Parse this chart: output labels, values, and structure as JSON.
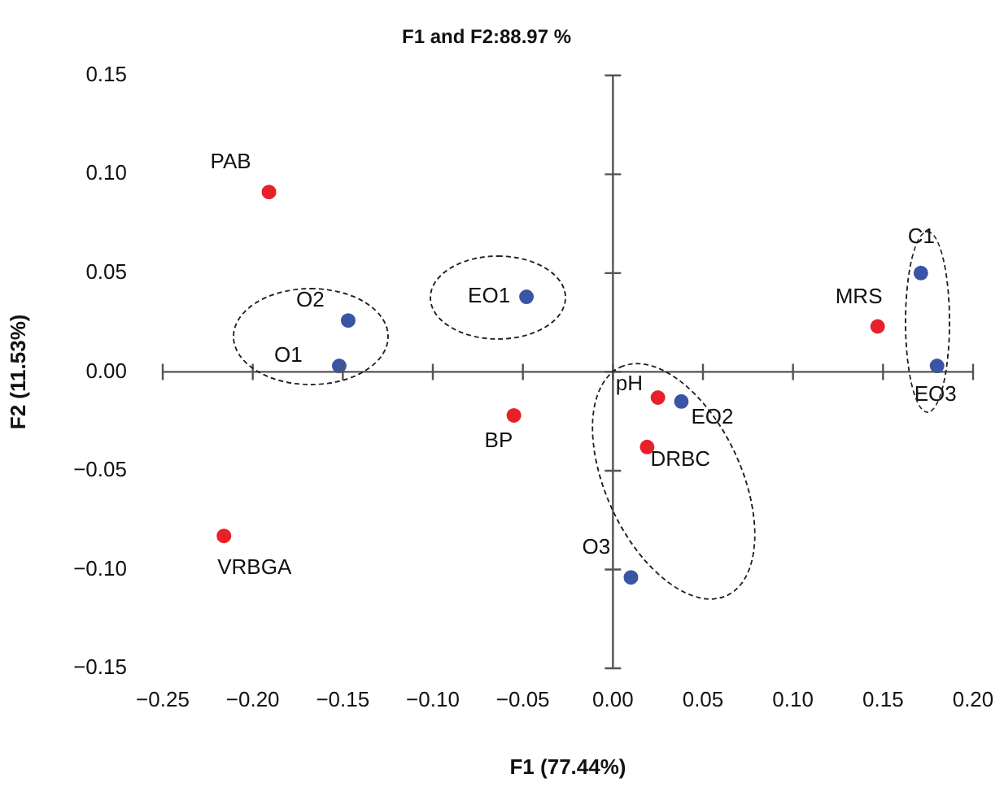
{
  "chart_data": {
    "type": "scatter",
    "title": "F1 and F2:88.97 %",
    "xlabel": "F1 (77.44%)",
    "ylabel": "F2 (11.53%)",
    "xlim": [
      -0.25,
      0.2
    ],
    "xticks": [
      {
        "value": -0.25,
        "label": "−0.25"
      },
      {
        "value": -0.2,
        "label": "−0.20"
      },
      {
        "value": -0.15,
        "label": "−0.15"
      },
      {
        "value": -0.1,
        "label": "−0.10"
      },
      {
        "value": -0.05,
        "label": "−0.05"
      },
      {
        "value": 0,
        "label": "0.00"
      },
      {
        "value": 0.05,
        "label": "0.05"
      },
      {
        "value": 0.1,
        "label": "0.10"
      },
      {
        "value": 0.15,
        "label": "0.15"
      },
      {
        "value": 0.2,
        "label": "0.20"
      }
    ],
    "ylim": [
      -0.15,
      0.15
    ],
    "yticks": [
      {
        "value": -0.15,
        "label": "−0.15"
      },
      {
        "value": -0.1,
        "label": "−0.10"
      },
      {
        "value": -0.05,
        "label": "−0.05"
      },
      {
        "value": 0,
        "label": "0.00"
      },
      {
        "value": 0.05,
        "label": "0.05"
      },
      {
        "value": 0.1,
        "label": "0.10"
      },
      {
        "value": 0.15,
        "label": "0.15"
      }
    ],
    "marker": "circle",
    "series": [
      {
        "name": "PAB",
        "color": "#e8202a",
        "x": [
          -0.191
        ],
        "values": [
          0.091
        ]
      },
      {
        "name": "O2",
        "color": "#3b55a5",
        "x": [
          -0.147
        ],
        "values": [
          0.026
        ]
      },
      {
        "name": "O1",
        "color": "#3b55a5",
        "x": [
          -0.152
        ],
        "values": [
          0.003
        ]
      },
      {
        "name": "EO1",
        "color": "#3b55a5",
        "x": [
          -0.048
        ],
        "values": [
          0.038
        ]
      },
      {
        "name": "BP",
        "color": "#e8202a",
        "x": [
          -0.055
        ],
        "values": [
          -0.022
        ]
      },
      {
        "name": "VRBGA",
        "color": "#e8202a",
        "x": [
          -0.216
        ],
        "values": [
          -0.083
        ]
      },
      {
        "name": "pH",
        "color": "#e8202a",
        "x": [
          0.025
        ],
        "values": [
          -0.013
        ]
      },
      {
        "name": "EO2",
        "color": "#3b55a5",
        "x": [
          0.038
        ],
        "values": [
          -0.015
        ]
      },
      {
        "name": "DRBC",
        "color": "#e8202a",
        "x": [
          0.019
        ],
        "values": [
          -0.038
        ]
      },
      {
        "name": "O3",
        "color": "#3b55a5",
        "x": [
          0.01
        ],
        "values": [
          -0.104
        ]
      },
      {
        "name": "C1",
        "color": "#3b55a5",
        "x": [
          0.171
        ],
        "values": [
          0.05
        ]
      },
      {
        "name": "MRS",
        "color": "#e8202a",
        "x": [
          0.147
        ],
        "values": [
          0.023
        ]
      },
      {
        "name": "EO3",
        "color": "#3b55a5",
        "x": [
          0.18
        ],
        "values": [
          0.003
        ]
      }
    ]
  }
}
